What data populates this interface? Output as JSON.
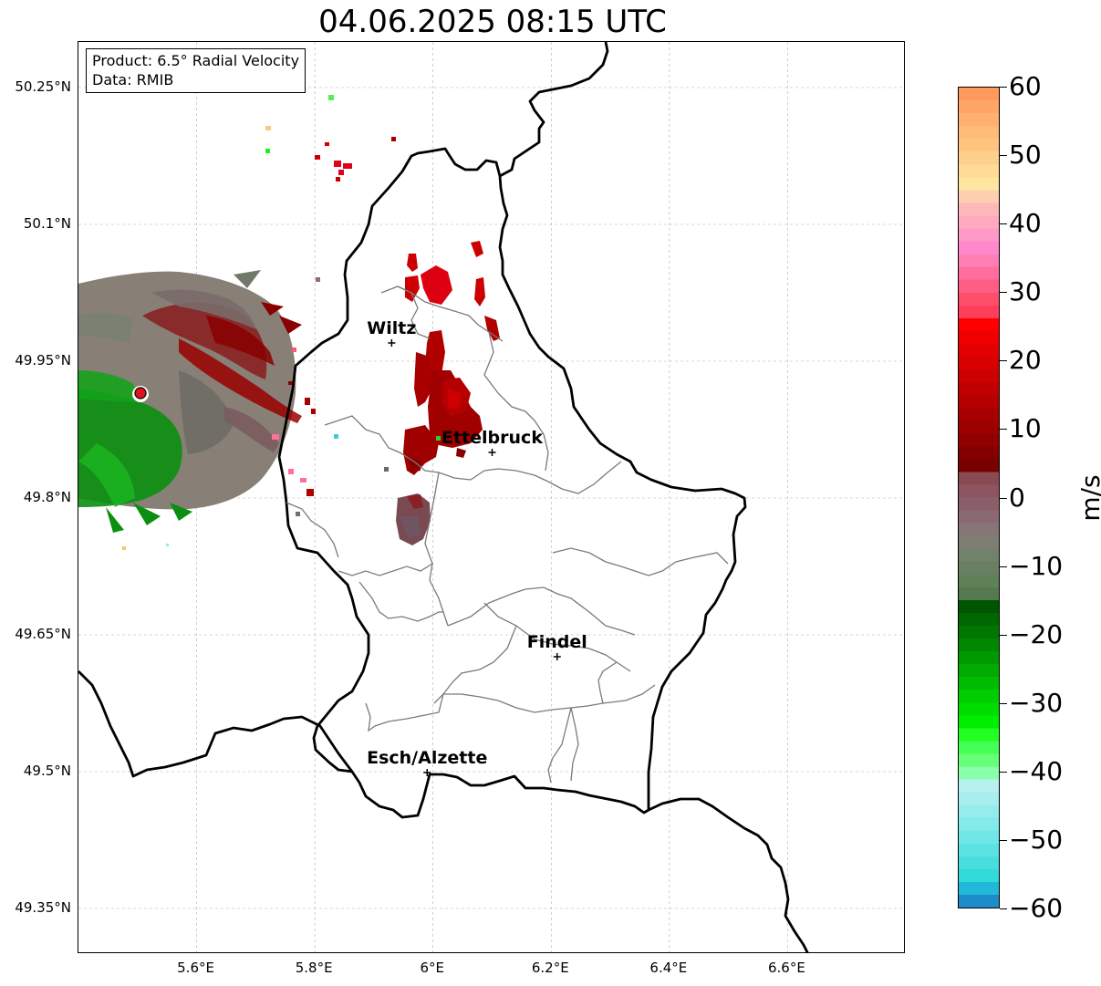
{
  "title": "04.06.2025 08:15 UTC",
  "info_box": {
    "line1": "Product: 6.5° Radial Velocity",
    "line2": "Data: RMIB"
  },
  "axes": {
    "lat_ticks": [
      "50.25°N",
      "50.1°N",
      "49.95°N",
      "49.8°N",
      "49.65°N",
      "49.5°N",
      "49.35°N"
    ],
    "lon_ticks": [
      "5.6°E",
      "5.8°E",
      "6°E",
      "6.2°E",
      "6.4°E",
      "6.6°E"
    ],
    "lat_values": [
      50.25,
      50.1,
      49.95,
      49.8,
      49.65,
      49.5,
      49.35
    ],
    "lon_values": [
      5.6,
      5.8,
      6.0,
      6.2,
      6.4,
      6.6
    ],
    "lon_range": [
      5.4,
      6.8
    ],
    "lat_range": [
      49.3,
      50.3
    ],
    "grid": true
  },
  "cities": [
    {
      "name": "Wiltz",
      "lon": 5.93,
      "lat": 49.97
    },
    {
      "name": "Ettelbruck",
      "lon": 6.1,
      "lat": 49.85
    },
    {
      "name": "Findel",
      "lon": 6.21,
      "lat": 49.626
    },
    {
      "name": "Esch/Alzette",
      "lon": 5.99,
      "lat": 49.499
    }
  ],
  "radar_site": {
    "lon": 5.505,
    "lat": 49.915,
    "color": "#e0141e"
  },
  "colorbar": {
    "label": "m/s",
    "min": -60,
    "max": 60,
    "ticks": [
      "60",
      "50",
      "40",
      "30",
      "20",
      "10",
      "0",
      "−10",
      "−20",
      "−30",
      "−40",
      "−50",
      "−60"
    ],
    "tick_values": [
      60,
      50,
      40,
      30,
      20,
      10,
      0,
      -10,
      -20,
      -30,
      -40,
      -50,
      -60
    ],
    "colors_top_to_bottom": [
      "#ff9a5c",
      "#ffa566",
      "#ffb070",
      "#ffbb78",
      "#ffc480",
      "#ffcf8c",
      "#ffdb96",
      "#ffe6a0",
      "#ffd0b0",
      "#ffb8b8",
      "#ffaac0",
      "#ff99c8",
      "#ff88cc",
      "#ff7eb4",
      "#ff6e9c",
      "#ff5e84",
      "#ff4e6c",
      "#ff3e5c",
      "#ff0000",
      "#f00000",
      "#e40000",
      "#d80000",
      "#cc0000",
      "#c00000",
      "#b40000",
      "#a80000",
      "#9c0000",
      "#900000",
      "#840000",
      "#780000",
      "#8a4a52",
      "#8c5560",
      "#8a5f6a",
      "#8a6a72",
      "#877578",
      "#7f7e72",
      "#72826a",
      "#6a7e62",
      "#608058",
      "#567a50",
      "#005500",
      "#006600",
      "#007700",
      "#008800",
      "#009900",
      "#00aa00",
      "#00bb00",
      "#00cc00",
      "#00dd00",
      "#00ee00",
      "#22ff22",
      "#44ff55",
      "#66ff77",
      "#88ffaa",
      "#b8f0f0",
      "#a8eeee",
      "#96ecec",
      "#84eaea",
      "#70e6e6",
      "#5ce2e2",
      "#48dede",
      "#34dada",
      "#22b8d8",
      "#1e8cc8"
    ]
  },
  "echoes": {
    "colors": {
      "dark_red": "#a80000",
      "red": "#cc0000",
      "bright_red": "#e0001a",
      "gray": "#808070",
      "mauve": "#7a4a52",
      "green": "#008800",
      "light_green": "#44dd44",
      "pink": "#ff6e9c"
    }
  }
}
